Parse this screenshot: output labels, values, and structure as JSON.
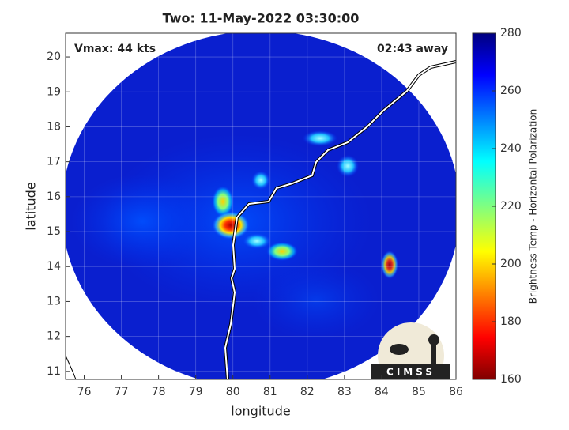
{
  "map": {
    "title": "Two: 11-May-2022 03:30:00",
    "left_annotation": "Vmax: 44 kts",
    "right_annotation": "02:43 away",
    "xlabel": "longitude",
    "ylabel": "latitude",
    "xlim": [
      75.5,
      86
    ],
    "ylim": [
      10.77,
      20.68
    ],
    "xticks": [
      76,
      77,
      78,
      79,
      80,
      81,
      82,
      83,
      84,
      85,
      86
    ],
    "yticks": [
      11,
      12,
      13,
      14,
      15,
      16,
      17,
      18,
      19,
      20
    ],
    "grid": true,
    "colorbar": {
      "label": "Brightness Temp - Horizontal Polarization",
      "lim": [
        160,
        280
      ],
      "ticks": [
        160,
        180,
        200,
        220,
        240,
        260,
        280
      ]
    },
    "logo": "CIMSS"
  }
}
